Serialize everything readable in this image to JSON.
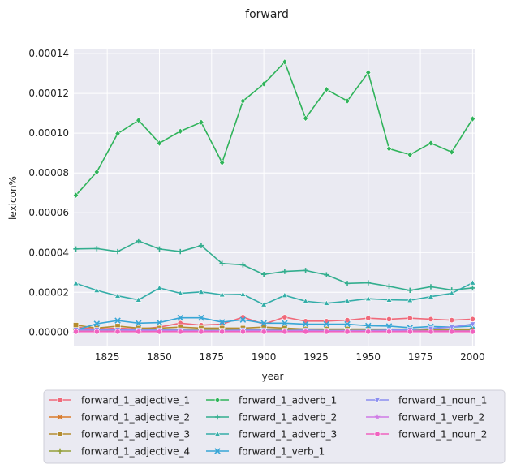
{
  "chart_data": {
    "type": "line",
    "title": "forward",
    "xlabel": "year",
    "ylabel": "lexicon%",
    "xlim": [
      1809,
      2001
    ],
    "ylim": [
      -6.8e-06,
      0.0001425
    ],
    "x_ticks": [
      1825,
      1850,
      1875,
      1900,
      1925,
      1950,
      1975,
      2000
    ],
    "y_ticks": [
      0.0,
      2e-05,
      4e-05,
      6e-05,
      8e-05,
      0.0001,
      0.00012,
      0.00014
    ],
    "y_tick_labels": [
      "0.00000",
      "0.00002",
      "0.00004",
      "0.00006",
      "0.00008",
      "0.00010",
      "0.00012",
      "0.00014"
    ],
    "x_tick_labels": [
      "1825",
      "1850",
      "1875",
      "1900",
      "1925",
      "1950",
      "1975",
      "2000"
    ],
    "x": [
      1810,
      1820,
      1830,
      1840,
      1850,
      1860,
      1870,
      1880,
      1890,
      1900,
      1910,
      1920,
      1930,
      1940,
      1950,
      1960,
      1970,
      1980,
      1990,
      2000
    ],
    "grid": true,
    "background": "#eaeaf2",
    "legend_placement": "bottom",
    "series": [
      {
        "name": "forward_1_adjective_1",
        "color": "#f0697a",
        "marker": "circle",
        "values": [
          2.5e-06,
          1.5e-06,
          2e-06,
          1.5e-06,
          2.5e-06,
          4.5e-06,
          3.5e-06,
          4e-06,
          7.5e-06,
          4e-06,
          7.5e-06,
          5.5e-06,
          5.5e-06,
          6e-06,
          7e-06,
          6.5e-06,
          7e-06,
          6.5e-06,
          6e-06,
          6.5e-06
        ]
      },
      {
        "name": "forward_1_adjective_2",
        "color": "#d97b2b",
        "marker": "x",
        "values": [
          1e-06,
          8e-07,
          1e-06,
          8e-07,
          8e-07,
          8e-07,
          8e-07,
          8e-07,
          1e-06,
          1e-06,
          1e-06,
          8e-07,
          8e-07,
          8e-07,
          8e-07,
          8e-07,
          8e-07,
          8e-07,
          8e-07,
          8e-07
        ]
      },
      {
        "name": "forward_1_adjective_3",
        "color": "#b48c2f",
        "marker": "square",
        "values": [
          3.5e-06,
          2e-06,
          3e-06,
          2e-06,
          2e-06,
          2.5e-06,
          2e-06,
          2e-06,
          2e-06,
          2.5e-06,
          2e-06,
          1.5e-06,
          1.5e-06,
          1.5e-06,
          1.5e-06,
          1.2e-06,
          1.2e-06,
          1.2e-06,
          1.2e-06,
          1.2e-06
        ]
      },
      {
        "name": "forward_1_adjective_4",
        "color": "#94a03a",
        "marker": "plus",
        "values": [
          1e-06,
          1e-06,
          1.2e-06,
          1e-06,
          1e-06,
          1e-06,
          1e-06,
          1e-06,
          1.2e-06,
          1.5e-06,
          1.5e-06,
          1.5e-06,
          1.5e-06,
          1.5e-06,
          1.5e-06,
          1.5e-06,
          1.5e-06,
          1.5e-06,
          1.5e-06,
          1.5e-06
        ]
      },
      {
        "name": "forward_1_adverb_1",
        "color": "#2fb35a",
        "marker": "diamond",
        "values": [
          6.88e-05,
          8.05e-05,
          9.98e-05,
          0.0001065,
          9.5e-05,
          0.000101,
          0.0001055,
          8.52e-05,
          0.0001162,
          0.0001248,
          0.0001358,
          0.0001075,
          0.000122,
          0.0001162,
          0.0001305,
          9.22e-05,
          8.92e-05,
          9.5e-05,
          9.05e-05,
          0.0001072
        ]
      },
      {
        "name": "forward_1_adverb_2",
        "color": "#33ae8e",
        "marker": "plus",
        "values": [
          4.18e-05,
          4.2e-05,
          4.05e-05,
          4.58e-05,
          4.18e-05,
          4.05e-05,
          4.35e-05,
          3.45e-05,
          3.38e-05,
          2.9e-05,
          3.05e-05,
          3.1e-05,
          2.88e-05,
          2.45e-05,
          2.48e-05,
          2.3e-05,
          2.1e-05,
          2.28e-05,
          2.12e-05,
          2.22e-05
        ]
      },
      {
        "name": "forward_1_adverb_3",
        "color": "#34ada8",
        "marker": "triangle-up",
        "values": [
          2.45e-05,
          2.1e-05,
          1.82e-05,
          1.62e-05,
          2.22e-05,
          1.95e-05,
          2.02e-05,
          1.88e-05,
          1.9e-05,
          1.38e-05,
          1.85e-05,
          1.55e-05,
          1.45e-05,
          1.55e-05,
          1.68e-05,
          1.62e-05,
          1.6e-05,
          1.78e-05,
          1.95e-05,
          2.48e-05
        ]
      },
      {
        "name": "forward_1_verb_1",
        "color": "#38a6d6",
        "marker": "x",
        "values": [
          1e-06,
          4.2e-06,
          5.8e-06,
          4.5e-06,
          4.8e-06,
          7.2e-06,
          7.2e-06,
          5e-06,
          6.2e-06,
          4.5e-06,
          4.5e-06,
          4e-06,
          4e-06,
          4e-06,
          3.2e-06,
          3e-06,
          2.2e-06,
          2.8e-06,
          2.5e-06,
          3e-06
        ]
      },
      {
        "name": "forward_1_noun_1",
        "color": "#8b8ef0",
        "marker": "triangle-down",
        "values": [
          1.2e-06,
          1.2e-06,
          1.2e-06,
          1e-06,
          1e-06,
          1e-06,
          8e-07,
          8e-07,
          1e-06,
          1e-06,
          8e-07,
          1e-06,
          8e-07,
          8e-07,
          8e-07,
          1e-06,
          1.2e-06,
          1.8e-06,
          2.5e-06,
          4e-06
        ]
      },
      {
        "name": "forward_1_verb_2",
        "color": "#d07be6",
        "marker": "star",
        "values": [
          5e-07,
          5e-07,
          5e-07,
          5e-07,
          5e-07,
          5e-07,
          5e-07,
          5e-07,
          5e-07,
          5e-07,
          5e-07,
          5e-07,
          5e-07,
          5e-07,
          5e-07,
          5e-07,
          5e-07,
          5e-07,
          5e-07,
          5e-07
        ]
      },
      {
        "name": "forward_1_noun_2",
        "color": "#f062c0",
        "marker": "circle",
        "values": [
          2e-07,
          2e-07,
          2e-07,
          2e-07,
          2e-07,
          2e-07,
          2e-07,
          2e-07,
          2e-07,
          2e-07,
          2e-07,
          2e-07,
          2e-07,
          2e-07,
          2e-07,
          2e-07,
          2e-07,
          2e-07,
          2e-07,
          2e-07
        ]
      }
    ]
  }
}
